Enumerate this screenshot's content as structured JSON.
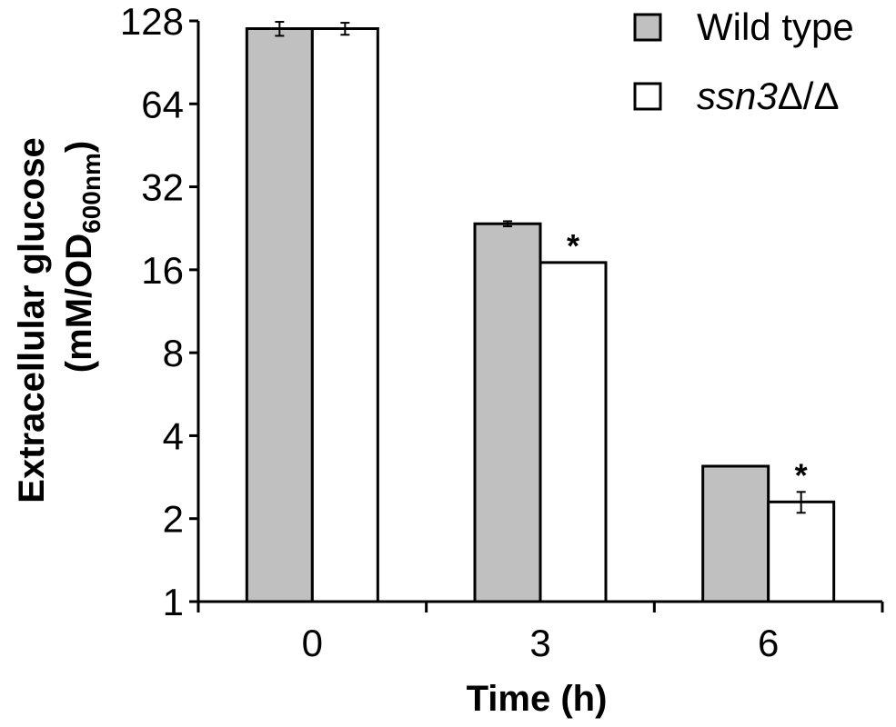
{
  "chart_data": {
    "type": "bar",
    "scale": "log2",
    "categories": [
      "0",
      "3",
      "6"
    ],
    "xlabel": "Time (h)",
    "ylabel_line1": "Extracellular glucose",
    "ylabel_line2_main": "(mM/OD",
    "ylabel_line2_sub": "600nm",
    "ylabel_line2_end": ")",
    "ylim": [
      1,
      128
    ],
    "yticks": [
      1,
      2,
      4,
      8,
      16,
      32,
      64,
      128
    ],
    "grid": false,
    "legend_position": "top-right",
    "series": [
      {
        "name": "Wild type",
        "color": "#c0c0c0",
        "values": [
          120,
          23.5,
          3.1
        ],
        "errors": [
          7,
          0.5,
          0
        ],
        "significance": [
          "",
          "",
          ""
        ]
      },
      {
        "name_prefix": "ssn3",
        "name_suffix": "Δ/Δ",
        "color": "#ffffff",
        "values": [
          120,
          17,
          2.3
        ],
        "errors": [
          6,
          0,
          0.2
        ],
        "significance": [
          "",
          "*",
          "*"
        ]
      }
    ]
  }
}
